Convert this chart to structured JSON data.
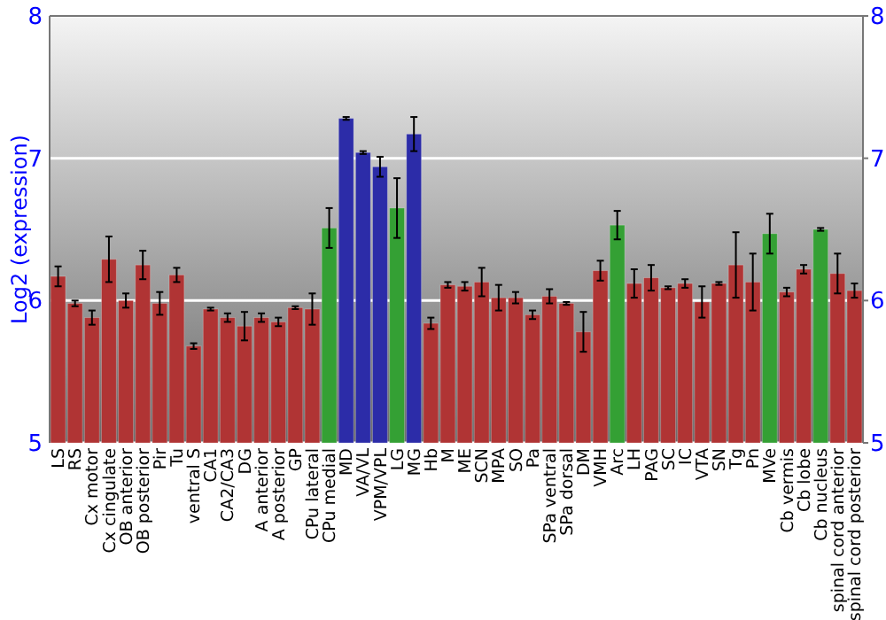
{
  "chart_data": {
    "type": "bar",
    "ylabel": "Log2 (expression)",
    "categories": [
      "LS",
      "RS",
      "Cx motor",
      "Cx cingulate",
      "OB anterior",
      "OB posterior",
      "Pir",
      "Tu",
      "ventral S",
      "CA1",
      "CA2/CA3",
      "DG",
      "A anterior",
      "A posterior",
      "GP",
      "CPu lateral",
      "CPu medial",
      "MD",
      "VA/VL",
      "VPM/VPL",
      "LG",
      "MG",
      "Hb",
      "M",
      "ME",
      "SCN",
      "MPA",
      "SO",
      "Pa",
      "SPa ventral",
      "SPa dorsal",
      "DM",
      "VMH",
      "Arc",
      "LH",
      "PAG",
      "SC",
      "IC",
      "VTA",
      "SN",
      "Tg",
      "Pn",
      "MVe",
      "Cb vermis",
      "Cb lobe",
      "Cb nucleus",
      "spinal cord anterior",
      "spinal cord posterior"
    ],
    "values": [
      6.17,
      5.98,
      5.88,
      6.29,
      6.0,
      6.25,
      5.98,
      6.18,
      5.68,
      5.94,
      5.88,
      5.82,
      5.88,
      5.85,
      5.95,
      5.94,
      6.51,
      7.28,
      7.04,
      6.94,
      6.65,
      7.17,
      5.84,
      6.11,
      6.1,
      6.13,
      6.02,
      6.02,
      5.9,
      6.03,
      5.98,
      5.78,
      6.21,
      6.53,
      6.12,
      6.16,
      6.09,
      6.12,
      5.99,
      6.12,
      6.25,
      6.13,
      6.47,
      6.06,
      6.22,
      6.5,
      6.19,
      6.07
    ],
    "errors": [
      0.07,
      0.02,
      0.05,
      0.16,
      0.05,
      0.1,
      0.08,
      0.05,
      0.02,
      0.01,
      0.03,
      0.1,
      0.03,
      0.03,
      0.01,
      0.11,
      0.14,
      0.01,
      0.01,
      0.07,
      0.21,
      0.12,
      0.04,
      0.02,
      0.03,
      0.1,
      0.09,
      0.04,
      0.03,
      0.05,
      0.01,
      0.14,
      0.07,
      0.1,
      0.1,
      0.09,
      0.01,
      0.03,
      0.11,
      0.01,
      0.23,
      0.2,
      0.14,
      0.03,
      0.03,
      0.01,
      0.14,
      0.05
    ],
    "colors": [
      "#b03434",
      "#b03434",
      "#b03434",
      "#b03434",
      "#b03434",
      "#b03434",
      "#b03434",
      "#b03434",
      "#b03434",
      "#b03434",
      "#b03434",
      "#b03434",
      "#b03434",
      "#b03434",
      "#b03434",
      "#b03434",
      "#34a034",
      "#2c2ca8",
      "#2c2ca8",
      "#2c2ca8",
      "#34a034",
      "#2c2ca8",
      "#b03434",
      "#b03434",
      "#b03434",
      "#b03434",
      "#b03434",
      "#b03434",
      "#b03434",
      "#b03434",
      "#b03434",
      "#b03434",
      "#b03434",
      "#34a034",
      "#b03434",
      "#b03434",
      "#b03434",
      "#b03434",
      "#b03434",
      "#b03434",
      "#b03434",
      "#b03434",
      "#34a034",
      "#b03434",
      "#b03434",
      "#34a034",
      "#b03434",
      "#b03434"
    ],
    "ylim": [
      5,
      8
    ],
    "yticks": [
      5,
      6,
      7,
      8
    ],
    "y2lim": [
      5,
      8
    ],
    "y2ticks": [
      5,
      6,
      7,
      8
    ],
    "grid": "y"
  }
}
